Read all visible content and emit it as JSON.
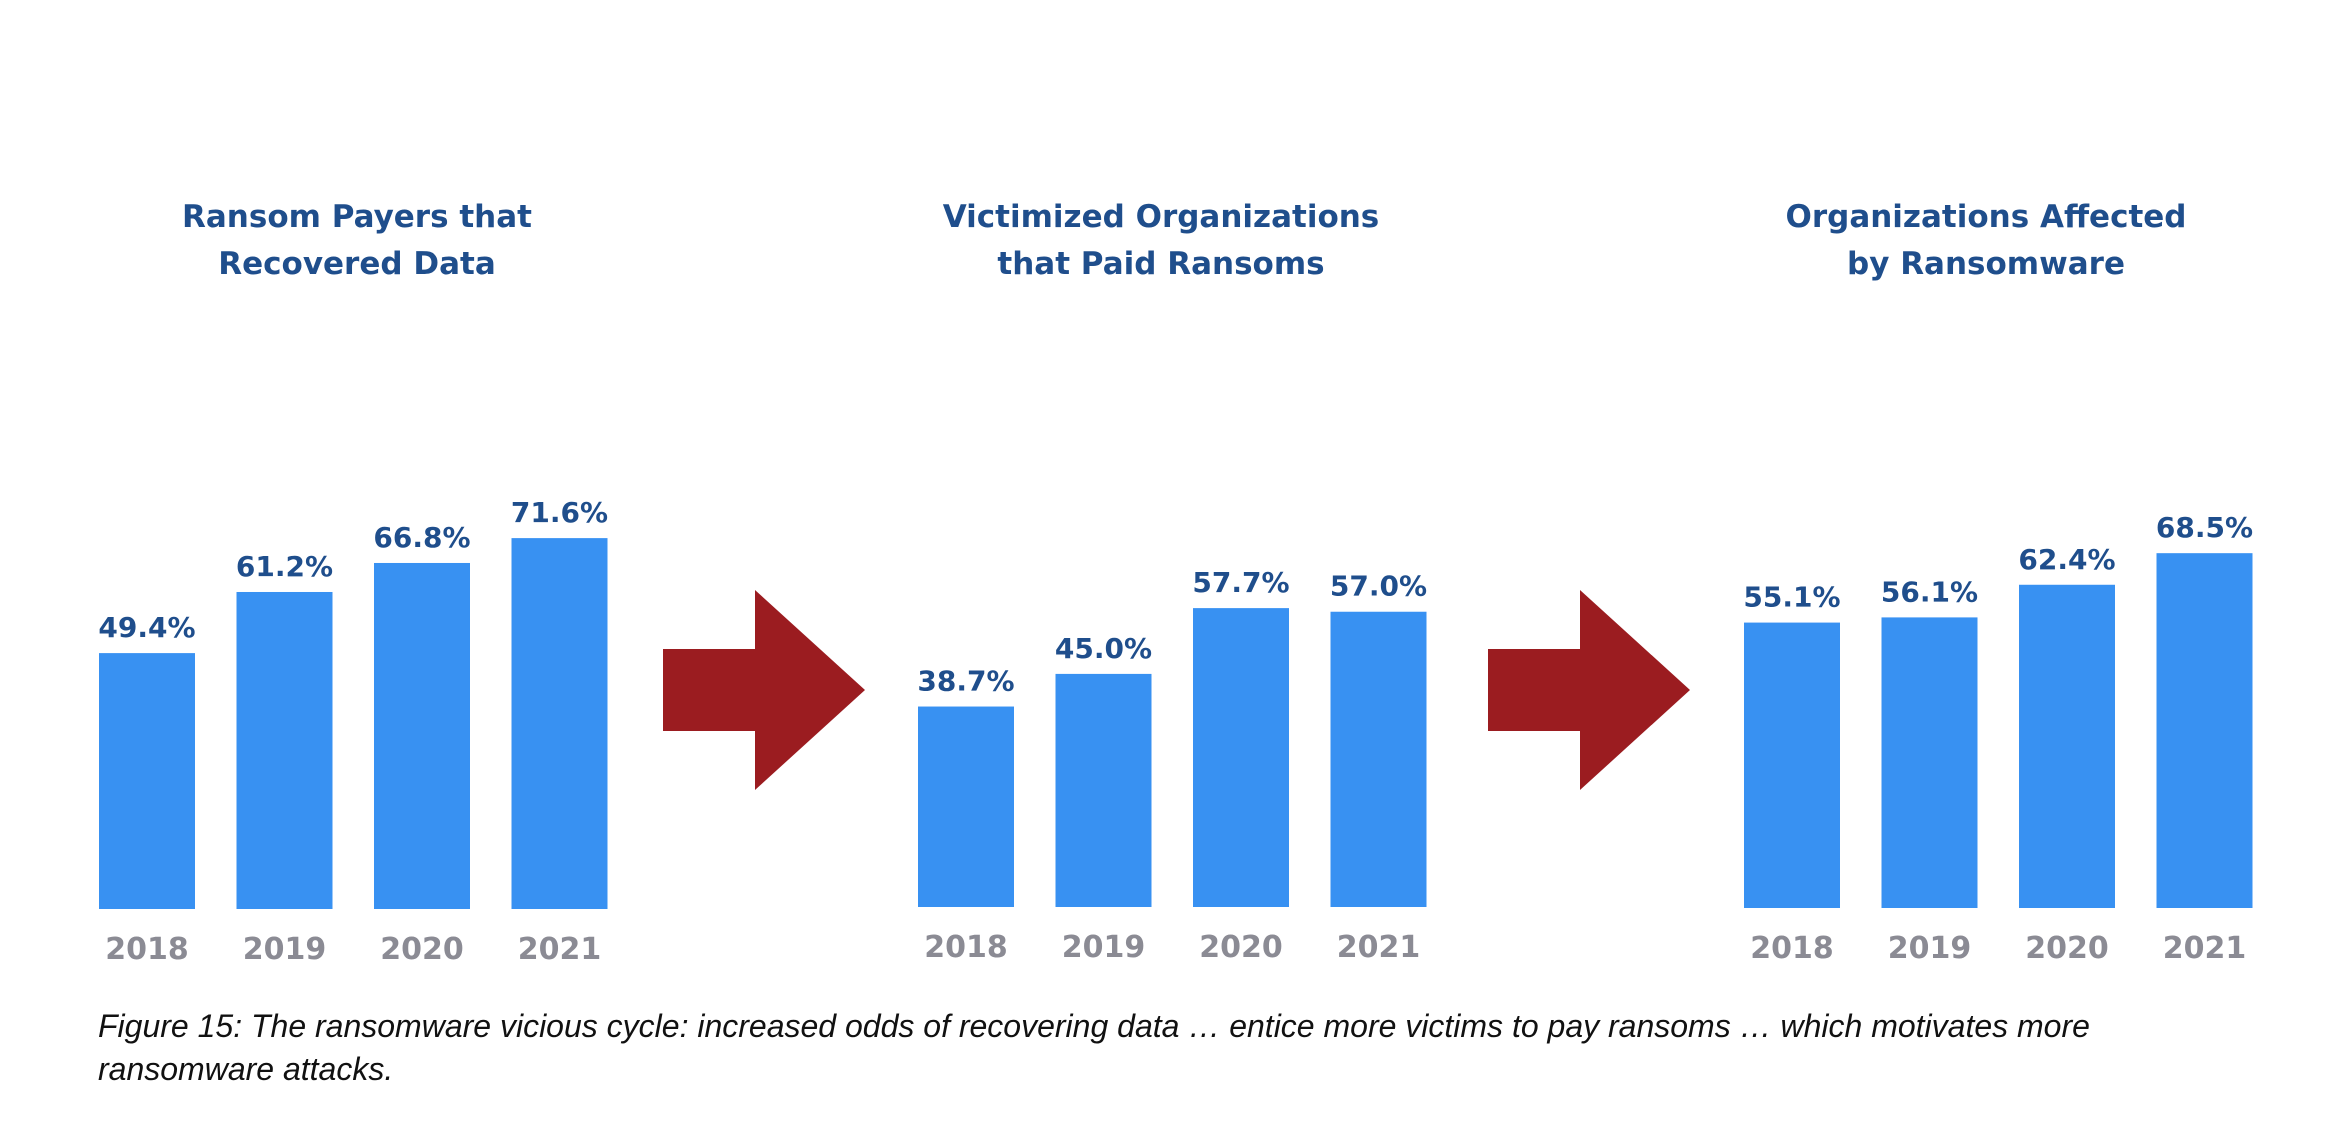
{
  "chart_data": [
    {
      "type": "bar",
      "title_lines": [
        "Ransom Payers that",
        "Recovered Data"
      ],
      "categories": [
        "2018",
        "2019",
        "2020",
        "2021"
      ],
      "values": [
        49.4,
        61.2,
        66.8,
        71.6
      ],
      "value_labels": [
        "49.4%",
        "61.2%",
        "66.8%",
        "71.6%"
      ],
      "ylim": [
        0,
        100
      ],
      "bar_color": "#3891f2"
    },
    {
      "type": "bar",
      "title_lines": [
        "Victimized Organizations",
        "that Paid Ransoms"
      ],
      "categories": [
        "2018",
        "2019",
        "2020",
        "2021"
      ],
      "values": [
        38.7,
        45.0,
        57.7,
        57.0
      ],
      "value_labels": [
        "38.7%",
        "45.0%",
        "57.7%",
        "57.0%"
      ],
      "ylim": [
        0,
        100
      ],
      "bar_color": "#3891f2"
    },
    {
      "type": "bar",
      "title_lines": [
        "Organizations Affected",
        "by Ransomware"
      ],
      "categories": [
        "2018",
        "2019",
        "2020",
        "2021"
      ],
      "values": [
        55.1,
        56.1,
        62.4,
        68.5
      ],
      "value_labels": [
        "55.1%",
        "56.1%",
        "62.4%",
        "68.5%"
      ],
      "ylim": [
        0,
        100
      ],
      "bar_color": "#3891f2"
    }
  ],
  "arrow_color": "#9b1c20",
  "title_color": "#1f4e8c",
  "tick_color": "#8b8b94",
  "caption": "Figure 15: The ransomware vicious cycle: increased odds of recovering data … entice more victims to pay ransoms … which motivates more ransomware attacks."
}
